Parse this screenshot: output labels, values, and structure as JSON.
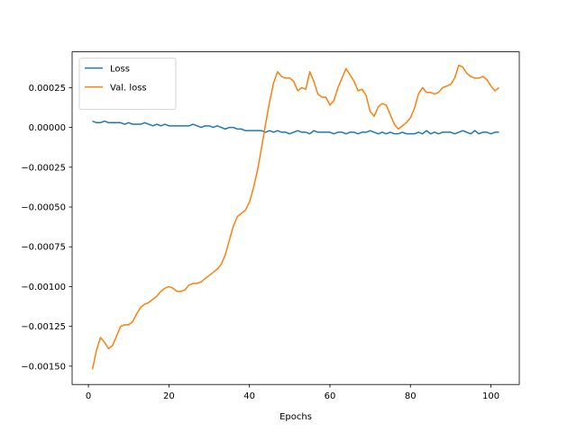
{
  "chart_data": {
    "type": "line",
    "x_label": "Epochs",
    "x": [
      1,
      2,
      3,
      4,
      5,
      6,
      7,
      8,
      9,
      10,
      11,
      12,
      13,
      14,
      15,
      16,
      17,
      18,
      19,
      20,
      21,
      22,
      23,
      24,
      25,
      26,
      27,
      28,
      29,
      30,
      31,
      32,
      33,
      34,
      35,
      36,
      37,
      38,
      39,
      40,
      41,
      42,
      43,
      44,
      45,
      46,
      47,
      48,
      49,
      50,
      51,
      52,
      53,
      54,
      55,
      56,
      57,
      58,
      59,
      60,
      61,
      62,
      63,
      64,
      65,
      66,
      67,
      68,
      69,
      70,
      71,
      72,
      73,
      74,
      75,
      76,
      77,
      78,
      79,
      80,
      81,
      82,
      83,
      84,
      85,
      86,
      87,
      88,
      89,
      90,
      91,
      92,
      93,
      94,
      95,
      96,
      97,
      98,
      99,
      100,
      101,
      102
    ],
    "series": [
      {
        "name": "Loss",
        "color": "#1f77b4",
        "values": [
          4e-05,
          3e-05,
          3e-05,
          4e-05,
          3e-05,
          3e-05,
          3e-05,
          3e-05,
          2e-05,
          3e-05,
          2e-05,
          2e-05,
          2e-05,
          3e-05,
          2e-05,
          1e-05,
          2e-05,
          1e-05,
          2e-05,
          1e-05,
          1e-05,
          1e-05,
          1e-05,
          1e-05,
          1e-05,
          2e-05,
          1e-05,
          0,
          1e-05,
          1e-05,
          0,
          1e-05,
          0,
          -1e-05,
          0,
          0,
          -1e-05,
          -1e-05,
          -2e-05,
          -2e-05,
          -2e-05,
          -2e-05,
          -2e-05,
          -3e-05,
          -2e-05,
          -3e-05,
          -2e-05,
          -3e-05,
          -3e-05,
          -4e-05,
          -3e-05,
          -2e-05,
          -3e-05,
          -3e-05,
          -4e-05,
          -2e-05,
          -3e-05,
          -3e-05,
          -3e-05,
          -3e-05,
          -4e-05,
          -3e-05,
          -3e-05,
          -4e-05,
          -3e-05,
          -3e-05,
          -4e-05,
          -3e-05,
          -3e-05,
          -2e-05,
          -3e-05,
          -4e-05,
          -3e-05,
          -4e-05,
          -3e-05,
          -4e-05,
          -4e-05,
          -3e-05,
          -4e-05,
          -4e-05,
          -4e-05,
          -3e-05,
          -4e-05,
          -2e-05,
          -4e-05,
          -3e-05,
          -4e-05,
          -3e-05,
          -3e-05,
          -3e-05,
          -4e-05,
          -3e-05,
          -2e-05,
          -3e-05,
          -4e-05,
          -2e-05,
          -4e-05,
          -3e-05,
          -3e-05,
          -4e-05,
          -3e-05,
          -3e-05
        ]
      },
      {
        "name": "Val. loss",
        "color": "#ff7f0e",
        "values": [
          -0.00152,
          -0.0014,
          -0.00132,
          -0.00135,
          -0.00139,
          -0.00137,
          -0.00131,
          -0.00125,
          -0.00124,
          -0.00124,
          -0.00122,
          -0.00117,
          -0.00113,
          -0.00111,
          -0.0011,
          -0.00108,
          -0.00106,
          -0.00103,
          -0.00101,
          -0.001,
          -0.00101,
          -0.00103,
          -0.00103,
          -0.00102,
          -0.00099,
          -0.00098,
          -0.00098,
          -0.00097,
          -0.00095,
          -0.00093,
          -0.00091,
          -0.00089,
          -0.00086,
          -0.0008,
          -0.00071,
          -0.00062,
          -0.00056,
          -0.00054,
          -0.00052,
          -0.00047,
          -0.00038,
          -0.00027,
          -0.00013,
          2e-05,
          0.00016,
          0.00028,
          0.00035,
          0.00032,
          0.00031,
          0.00031,
          0.00029,
          0.00023,
          0.00025,
          0.00024,
          0.00035,
          0.00029,
          0.00021,
          0.00019,
          0.00019,
          0.00014,
          0.00017,
          0.00025,
          0.00031,
          0.00037,
          0.00033,
          0.00029,
          0.00023,
          0.00024,
          0.0002,
          0.0001,
          7e-05,
          0.00013,
          0.00015,
          0.00014,
          8e-05,
          2e-05,
          -1e-05,
          1e-05,
          3e-05,
          6e-05,
          0.00012,
          0.00021,
          0.00025,
          0.00022,
          0.00022,
          0.00021,
          0.00022,
          0.00025,
          0.00026,
          0.00027,
          0.00031,
          0.00039,
          0.00038,
          0.00034,
          0.00032,
          0.00031,
          0.00031,
          0.00032,
          0.0003,
          0.00026,
          0.00023,
          0.00025
        ]
      }
    ],
    "xlim": [
      -4.05,
      107.05
    ],
    "xticks": [
      0,
      20,
      40,
      60,
      80,
      100
    ],
    "ylim": [
      -0.001615,
      0.000475
    ],
    "yticks": [
      {
        "value": 0.00025,
        "label": "0.00025"
      },
      {
        "value": 0,
        "label": "0.00000"
      },
      {
        "value": -0.00025,
        "label": "−0.00025"
      },
      {
        "value": -0.0005,
        "label": "−0.00050"
      },
      {
        "value": -0.00075,
        "label": "−0.00075"
      },
      {
        "value": -0.001,
        "label": "−0.00100"
      },
      {
        "value": -0.00125,
        "label": "−0.00125"
      },
      {
        "value": -0.0015,
        "label": "−0.00150"
      }
    ],
    "grid": false,
    "legend": "upper left"
  }
}
